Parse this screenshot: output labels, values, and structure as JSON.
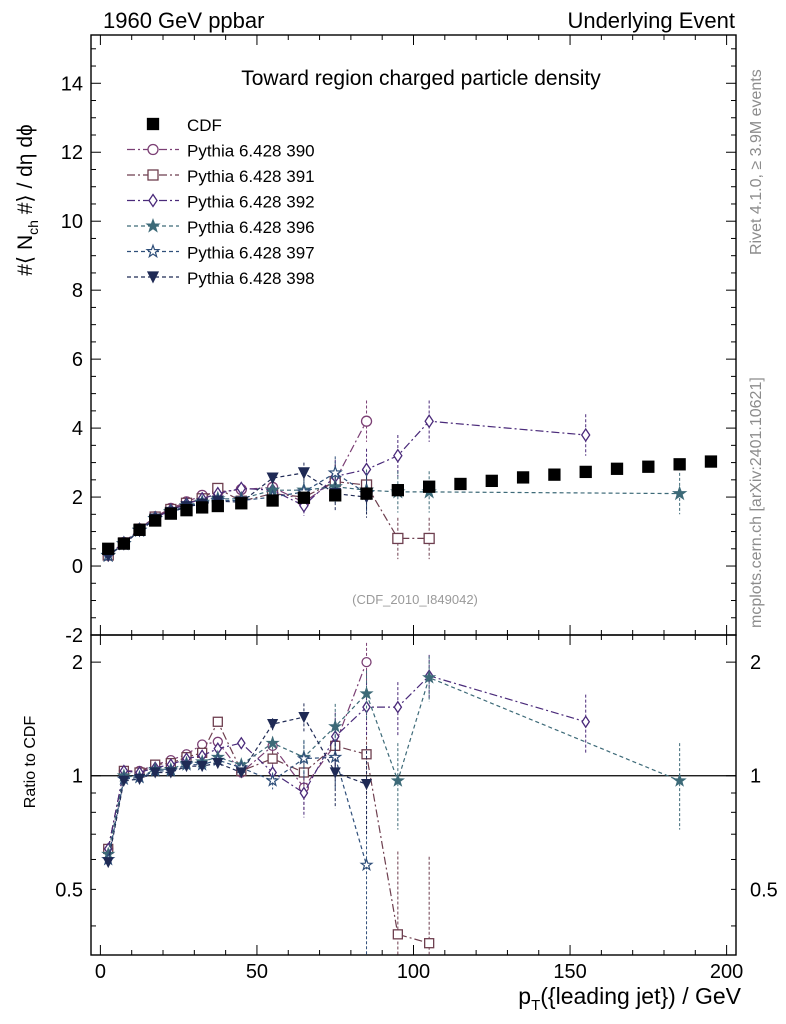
{
  "header": {
    "left": "1960 GeV ppbar",
    "right": "Underlying Event"
  },
  "side_labels": {
    "rivet": "Rivet 4.1.0, ≥ 3.9M events",
    "mcplots": "mcplots.cern.ch [arXiv:2401.10621]"
  },
  "chart_data": {
    "type": "scatter",
    "title": "Toward region charged particle density",
    "analysis_tag": "(CDF_2010_I849042)",
    "xlabel_main": "p",
    "xlabel_sub": "T",
    "xlabel_rest": "({leading jet}) / GeV",
    "ylabel_top": {
      "a": "#⟨ N",
      "sub": "ch",
      "b": " #⟩ / dη dϕ"
    },
    "ylabel_bottom": "Ratio to CDF",
    "xlim": [
      -3,
      203
    ],
    "ylim_top": [
      -2,
      15.4
    ],
    "ylim_bottom": [
      0.335,
      2.36
    ],
    "x_ticks": [
      0,
      50,
      100,
      150,
      200
    ],
    "y_ticks_top": [
      -2,
      0,
      2,
      4,
      6,
      8,
      10,
      12,
      14
    ],
    "y_ticks_bottom_labeled": [
      0.5,
      1,
      2
    ],
    "reference": {
      "name": "CDF",
      "marker": "square",
      "color": "#000000",
      "x": [
        2.5,
        7.5,
        12.5,
        17.5,
        22.5,
        27.5,
        32.5,
        37.5,
        45,
        55,
        65,
        75,
        85,
        95,
        105,
        115,
        125,
        135,
        145,
        155,
        165,
        175,
        185,
        195
      ],
      "y": [
        0.5,
        0.65,
        1.05,
        1.32,
        1.52,
        1.62,
        1.7,
        1.74,
        1.82,
        1.9,
        1.98,
        2.05,
        2.1,
        2.2,
        2.3,
        2.38,
        2.47,
        2.57,
        2.65,
        2.73,
        2.82,
        2.88,
        2.95,
        3.03
      ]
    },
    "series": [
      {
        "name": "Pythia 6.428 390",
        "marker": "circle-open",
        "color": "#7b3f74",
        "dash": "8,3,2,3",
        "x": [
          2.5,
          7.5,
          12.5,
          17.5,
          22.5,
          27.5,
          32.5,
          37.5,
          45,
          55,
          65,
          75,
          85
        ],
        "y": [
          0.33,
          0.68,
          1.08,
          1.43,
          1.67,
          1.86,
          2.05,
          2.15,
          2.22,
          2.28,
          1.85,
          2.48,
          4.2
        ],
        "ratio": [
          0.64,
          1.03,
          1.03,
          1.07,
          1.1,
          1.14,
          1.21,
          1.23,
          1.02,
          1.2,
          0.93,
          1.21,
          2.0
        ],
        "err": [
          0.02,
          0.02,
          0.03,
          0.04,
          0.05,
          0.05,
          0.06,
          0.08,
          0.1,
          0.2,
          0.5,
          0.8,
          1.0
        ]
      },
      {
        "name": "Pythia 6.428 391",
        "marker": "square-open",
        "color": "#6e3f4f",
        "dash": "8,3,2,3",
        "x": [
          2.5,
          7.5,
          12.5,
          17.5,
          22.5,
          27.5,
          32.5,
          37.5,
          45,
          55,
          65,
          75,
          85,
          95,
          105
        ],
        "y": [
          0.32,
          0.67,
          1.07,
          1.42,
          1.64,
          1.82,
          1.95,
          2.25,
          1.88,
          2.1,
          2.0,
          2.45,
          2.35,
          0.8,
          0.8
        ],
        "ratio": [
          0.64,
          1.03,
          1.02,
          1.07,
          1.08,
          1.12,
          1.15,
          1.39,
          1.03,
          1.11,
          1.02,
          1.2,
          1.14,
          0.38,
          0.36
        ],
        "err": [
          0.02,
          0.02,
          0.03,
          0.04,
          0.05,
          0.05,
          0.06,
          0.08,
          0.1,
          0.2,
          0.5,
          0.8,
          1.0,
          1.0,
          1.0
        ]
      },
      {
        "name": "Pythia 6.428 392",
        "marker": "diamond-open",
        "color": "#4a2a7a",
        "dash": "8,3,2,3",
        "x": [
          2.5,
          7.5,
          12.5,
          17.5,
          22.5,
          27.5,
          32.5,
          37.5,
          45,
          55,
          65,
          75,
          85,
          95,
          105,
          155
        ],
        "y": [
          0.32,
          0.67,
          1.06,
          1.4,
          1.62,
          1.8,
          1.95,
          2.1,
          2.25,
          2.2,
          1.75,
          2.6,
          2.8,
          3.2,
          4.2,
          3.8
        ],
        "ratio": [
          0.64,
          1.03,
          1.02,
          1.05,
          1.07,
          1.11,
          1.13,
          1.18,
          1.22,
          1.02,
          0.9,
          1.27,
          1.52,
          1.52,
          1.84,
          1.39
        ],
        "err": [
          0.02,
          0.02,
          0.03,
          0.04,
          0.05,
          0.05,
          0.06,
          0.08,
          0.1,
          0.2,
          0.5,
          0.8,
          1.0,
          1.0,
          1.0,
          1.0
        ]
      },
      {
        "name": "Pythia 6.428 396",
        "marker": "star-filled",
        "color": "#3d6a78",
        "dash": "4,3",
        "x": [
          2.5,
          7.5,
          12.5,
          17.5,
          22.5,
          27.5,
          32.5,
          37.5,
          45,
          55,
          65,
          75,
          85,
          95,
          105,
          185
        ],
        "y": [
          0.31,
          0.65,
          1.04,
          1.38,
          1.58,
          1.75,
          1.85,
          1.95,
          1.95,
          2.2,
          2.2,
          2.3,
          2.2,
          2.15,
          2.15,
          2.1
        ],
        "ratio": [
          0.62,
          1.0,
          0.99,
          1.04,
          1.04,
          1.08,
          1.09,
          1.12,
          1.07,
          1.22,
          1.12,
          1.35,
          1.65,
          0.97,
          1.82,
          0.97
        ],
        "err": [
          0.02,
          0.02,
          0.03,
          0.04,
          0.05,
          0.05,
          0.06,
          0.08,
          0.1,
          0.2,
          0.5,
          0.8,
          1.0,
          1.0,
          1.0,
          1.0
        ]
      },
      {
        "name": "Pythia 6.428 397",
        "marker": "star-open",
        "color": "#2f4f7a",
        "dash": "4,3",
        "x": [
          2.5,
          7.5,
          12.5,
          17.5,
          22.5,
          27.5,
          32.5,
          37.5,
          45,
          55,
          65,
          75,
          85
        ],
        "y": [
          0.3,
          0.64,
          1.03,
          1.37,
          1.56,
          1.73,
          1.82,
          1.9,
          1.9,
          2.0,
          2.15,
          2.7,
          2.1
        ],
        "ratio": [
          0.6,
          0.98,
          0.99,
          1.03,
          1.03,
          1.07,
          1.07,
          1.1,
          1.05,
          0.97,
          1.11,
          1.12,
          0.58
        ],
        "err": [
          0.02,
          0.02,
          0.03,
          0.04,
          0.05,
          0.05,
          0.06,
          0.08,
          0.1,
          0.2,
          0.5,
          0.8,
          1.0
        ]
      },
      {
        "name": "Pythia 6.428 398",
        "marker": "triangle-down-filled",
        "color": "#1f2a55",
        "dash": "4,3",
        "x": [
          2.5,
          7.5,
          12.5,
          17.5,
          22.5,
          27.5,
          32.5,
          37.5,
          45,
          55,
          65,
          75,
          85
        ],
        "y": [
          0.3,
          0.63,
          1.02,
          1.36,
          1.55,
          1.72,
          1.8,
          1.88,
          1.85,
          2.55,
          2.7,
          2.1,
          2.0
        ],
        "ratio": [
          0.59,
          0.97,
          0.98,
          1.02,
          1.02,
          1.06,
          1.06,
          1.08,
          1.02,
          1.37,
          1.43,
          1.02,
          0.95
        ],
        "err": [
          0.02,
          0.02,
          0.03,
          0.04,
          0.05,
          0.05,
          0.06,
          0.08,
          0.1,
          0.2,
          0.5,
          0.8,
          1.0
        ]
      }
    ]
  }
}
